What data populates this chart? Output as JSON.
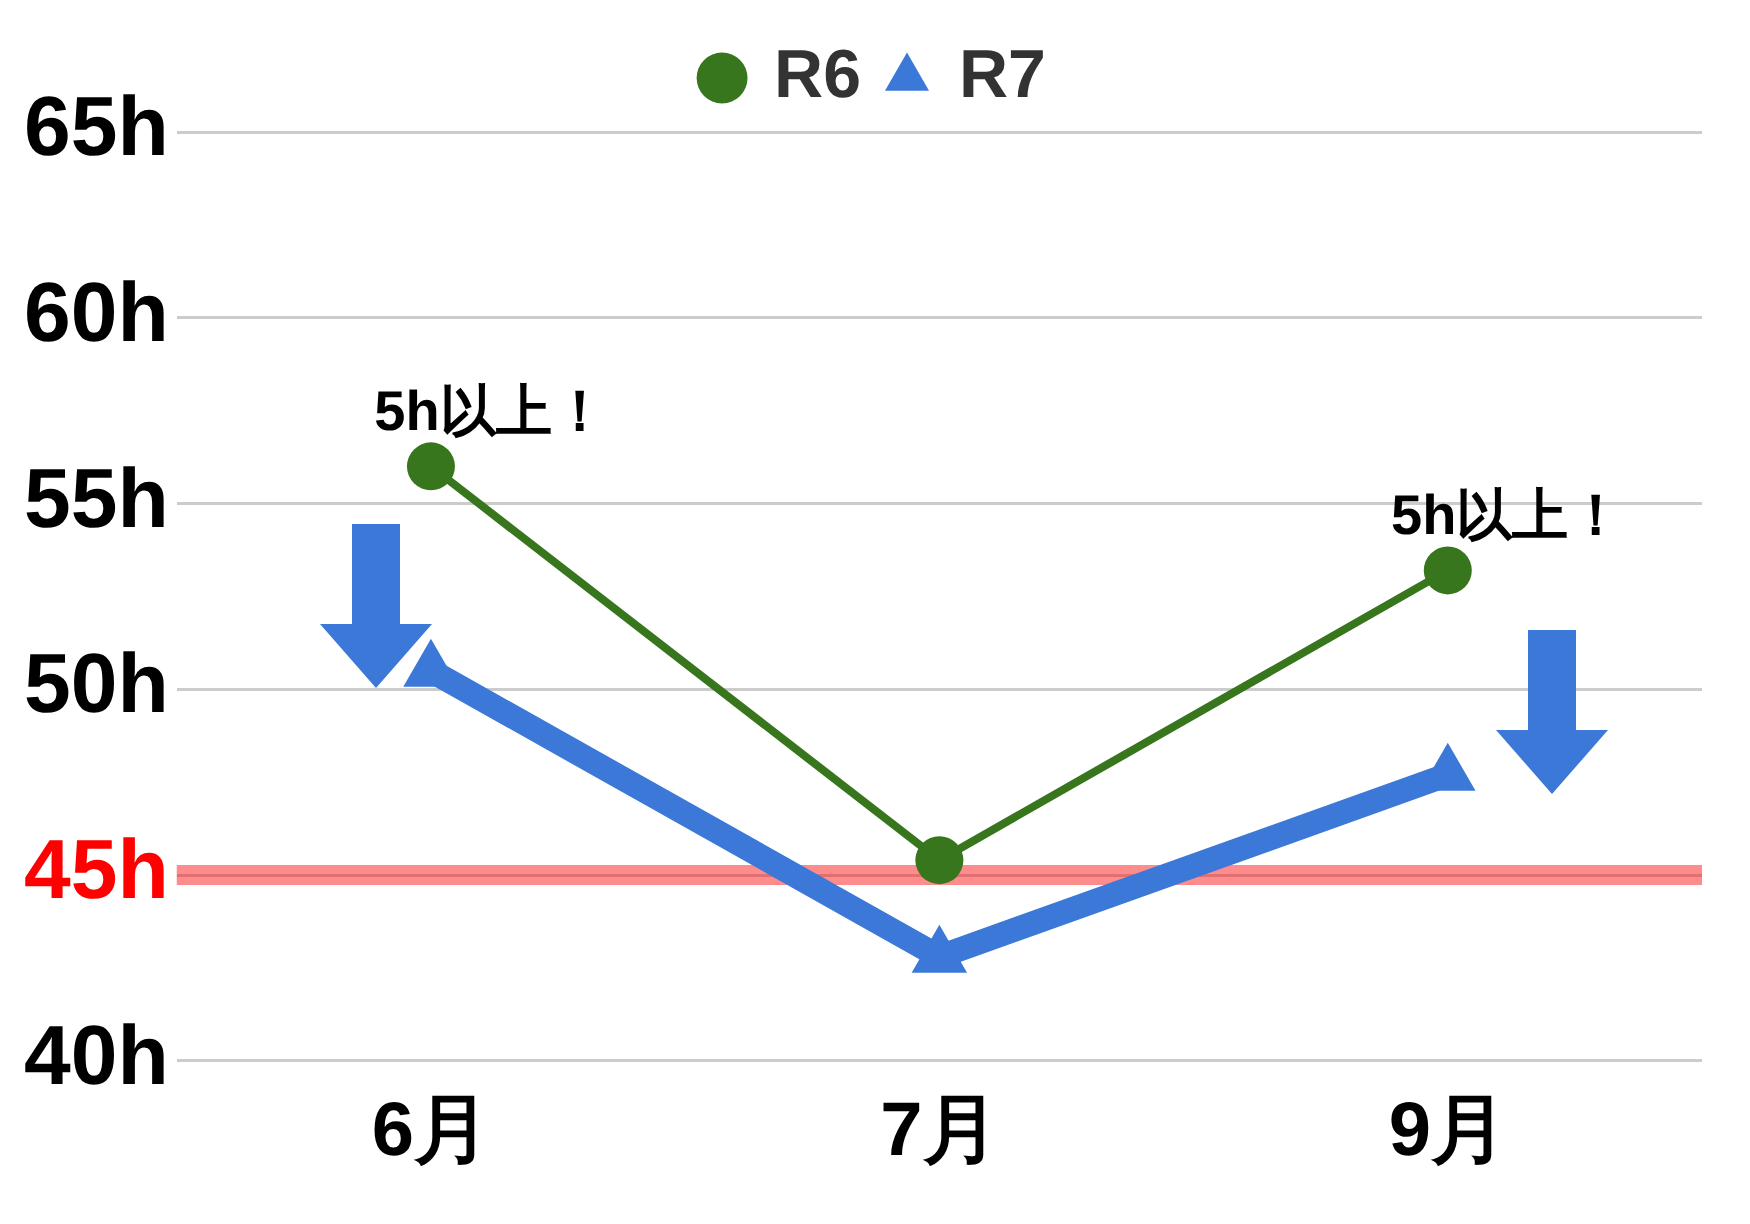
{
  "chart_data": {
    "type": "line",
    "categories": [
      "6月",
      "7月",
      "9月"
    ],
    "series": [
      {
        "name": "R6",
        "color": "#38761d",
        "marker": "circle",
        "values": [
          56.0,
          45.4,
          53.2
        ]
      },
      {
        "name": "R7",
        "color": "#3c78d8",
        "marker": "triangle",
        "values": [
          50.5,
          42.8,
          47.7
        ]
      }
    ],
    "ylim": [
      40,
      65
    ],
    "yticks": [
      {
        "value": 40,
        "label": "40h"
      },
      {
        "value": 45,
        "label": "45h"
      },
      {
        "value": 50,
        "label": "50h"
      },
      {
        "value": 55,
        "label": "55h"
      },
      {
        "value": 60,
        "label": "60h"
      },
      {
        "value": 65,
        "label": "65h"
      }
    ],
    "ref_lines": [
      {
        "axis": "y",
        "value": 45,
        "color": "#ff0000"
      }
    ],
    "annotations": [
      {
        "text": "5h以上！",
        "x": "6月",
        "y": 56.0
      },
      {
        "text": "5h以上！",
        "x": "9月",
        "y": 53.2
      }
    ],
    "grid": "y",
    "legend": "top",
    "line_style": "solid"
  }
}
